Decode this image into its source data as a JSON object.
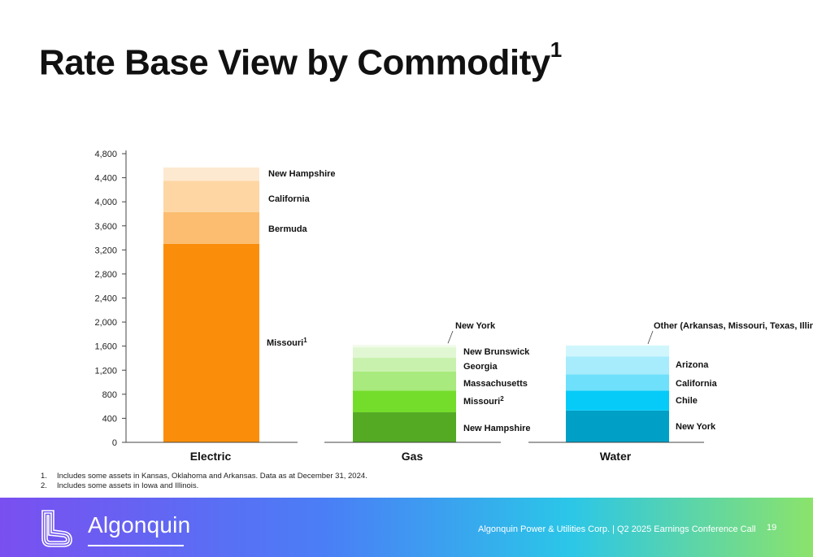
{
  "header": {
    "title": "Rate Base View by Commodity",
    "title_sup": "1"
  },
  "chart_data": {
    "type": "bar",
    "stacked": true,
    "categories": [
      "Electric",
      "Gas",
      "Water"
    ],
    "yticks": [
      "0",
      "400",
      "800",
      "1,200",
      "1,600",
      "2,000",
      "2,400",
      "2,800",
      "3,200",
      "3,600",
      "4,000",
      "4,400",
      "4,800"
    ],
    "ylim": [
      0,
      4800
    ],
    "grid": false,
    "legend": "inline labels",
    "stacks": [
      {
        "category": "Electric",
        "segments": [
          {
            "label": "Missouri",
            "sup": "1",
            "value": 3300,
            "color": "#fa8e0a"
          },
          {
            "label": "Bermuda",
            "value": 530,
            "color": "#fcbd70"
          },
          {
            "label": "California",
            "value": 520,
            "color": "#fdd6a4"
          },
          {
            "label": "New Hampshire",
            "value": 220,
            "color": "#fde9d0"
          }
        ]
      },
      {
        "category": "Gas",
        "segments": [
          {
            "label": "New Hampshire",
            "value": 500,
            "color": "#54aa23"
          },
          {
            "label": "Missouri",
            "sup": "2",
            "value": 360,
            "color": "#74dd2b"
          },
          {
            "label": "Massachusetts",
            "value": 320,
            "color": "#a8ea7d"
          },
          {
            "label": "Georgia",
            "value": 230,
            "color": "#c9f1ae"
          },
          {
            "label": "New Brunswick",
            "value": 170,
            "color": "#e1f7d3"
          },
          {
            "label": "New York",
            "value": 40,
            "color": "#f1fbea"
          }
        ]
      },
      {
        "category": "Water",
        "segments": [
          {
            "label": "New York",
            "value": 530,
            "color": "#00a0c6"
          },
          {
            "label": "Chile",
            "value": 330,
            "color": "#06cbf8"
          },
          {
            "label": "California",
            "value": 270,
            "color": "#6ee0fb"
          },
          {
            "label": "Arizona",
            "value": 300,
            "color": "#a6ecfc"
          },
          {
            "label": "Other (Arkansas, Missouri, Texas, Illinois)",
            "value": 180,
            "color": "#d0f6fd"
          }
        ]
      }
    ]
  },
  "footnotes": [
    {
      "num": "1.",
      "text": "Includes some assets in Kansas, Oklahoma and Arkansas. Data as at December 31, 2024."
    },
    {
      "num": "2.",
      "text": "Includes some assets in Iowa and Illinois."
    }
  ],
  "footer": {
    "brand": "Algonquin",
    "caption": "Algonquin Power & Utilities Corp. | Q2 2025 Earnings Conference Call",
    "page_number": "19",
    "colors": {
      "gradient_start": "#7a4ff0",
      "gradient_mid": "#2bc6e8",
      "gradient_end": "#8be36b"
    }
  }
}
